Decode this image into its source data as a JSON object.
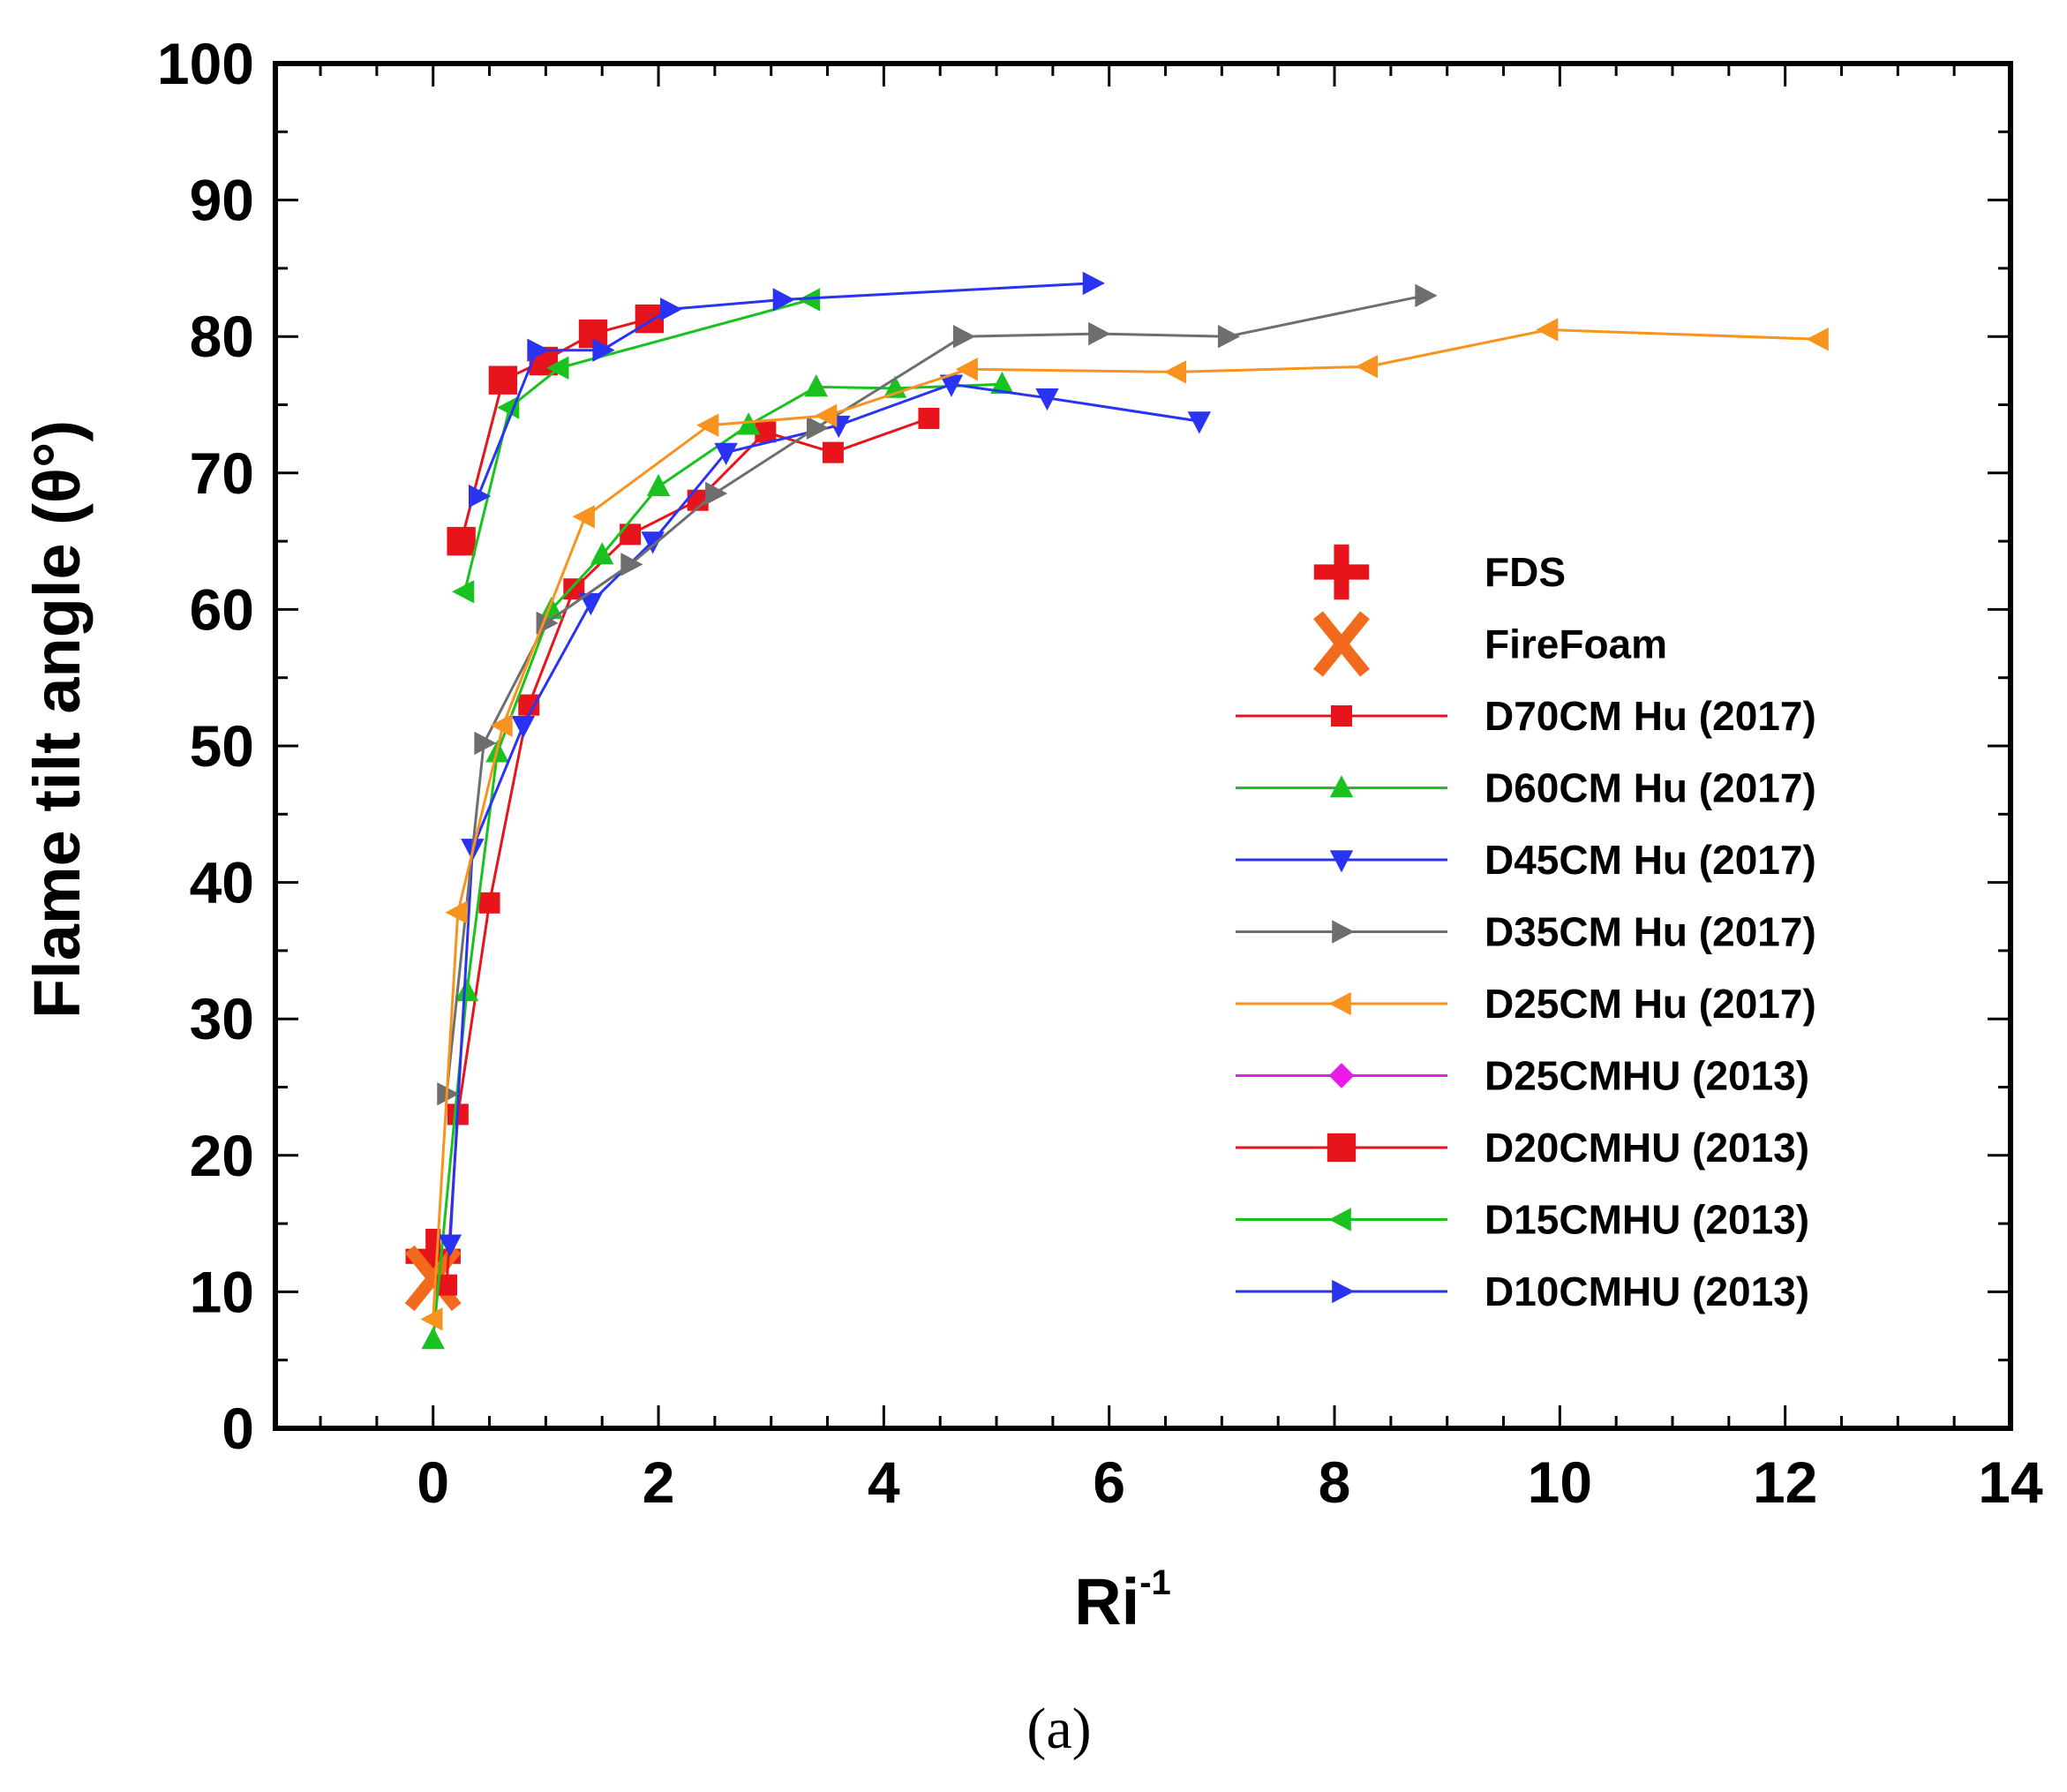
{
  "chart_data": {
    "type": "scatter",
    "title": "",
    "xlabel": "Ri",
    "xlabel_superscript": "-1",
    "ylabel": "Flame tilt angle (θ°)",
    "xlim": [
      -1.4,
      14
    ],
    "ylim": [
      0,
      100
    ],
    "xticks": [
      0,
      2,
      4,
      6,
      8,
      10,
      12,
      14
    ],
    "yticks": [
      0,
      10,
      20,
      30,
      40,
      50,
      60,
      70,
      80,
      90,
      100
    ],
    "grid": false,
    "legend_position": "right",
    "caption": "(a)",
    "series": [
      {
        "name": "FDS",
        "color": "#e8141c",
        "marker": "plus",
        "line": false,
        "points": [
          [
            0.0,
            12.6
          ]
        ]
      },
      {
        "name": "FireFoam",
        "color": "#f26b1d",
        "marker": "x",
        "line": false,
        "points": [
          [
            0.0,
            11.0
          ]
        ]
      },
      {
        "name": "D70CM Hu (2017)",
        "color": "#e8141c",
        "marker": "square",
        "line": true,
        "points": [
          [
            0.12,
            10.5
          ],
          [
            0.22,
            23
          ],
          [
            0.5,
            38.5
          ],
          [
            0.85,
            53
          ],
          [
            1.25,
            61.5
          ],
          [
            1.75,
            65.5
          ],
          [
            2.35,
            68
          ],
          [
            2.95,
            73
          ],
          [
            3.55,
            71.5
          ],
          [
            4.4,
            74
          ]
        ]
      },
      {
        "name": "D60CM Hu (2017)",
        "color": "#19c21e",
        "marker": "triangle-up",
        "line": true,
        "points": [
          [
            0.0,
            6.5
          ],
          [
            0.3,
            32
          ],
          [
            0.57,
            49.5
          ],
          [
            1.05,
            60
          ],
          [
            1.5,
            64
          ],
          [
            2.0,
            69
          ],
          [
            2.8,
            73.5
          ],
          [
            3.4,
            76.3
          ],
          [
            4.1,
            76.2
          ],
          [
            5.05,
            76.5
          ]
        ]
      },
      {
        "name": "D45CM Hu (2017)",
        "color": "#2a33f2",
        "marker": "triangle-down",
        "line": true,
        "points": [
          [
            0.15,
            13.5
          ],
          [
            0.35,
            42.5
          ],
          [
            0.8,
            51.5
          ],
          [
            1.4,
            60.5
          ],
          [
            1.95,
            65
          ],
          [
            2.6,
            71.5
          ],
          [
            3.6,
            73.5
          ],
          [
            4.6,
            76.5
          ],
          [
            5.45,
            75.5
          ],
          [
            6.8,
            73.8
          ]
        ]
      },
      {
        "name": "D35CM Hu (2017)",
        "color": "#6e6e6e",
        "marker": "triangle-right",
        "line": true,
        "points": [
          [
            0.12,
            24.5
          ],
          [
            0.45,
            50.2
          ],
          [
            1.0,
            59
          ],
          [
            1.75,
            63.3
          ],
          [
            2.5,
            68.5
          ],
          [
            3.4,
            73.3
          ],
          [
            4.7,
            80
          ],
          [
            5.9,
            80.2
          ],
          [
            7.05,
            80
          ],
          [
            8.8,
            83
          ]
        ]
      },
      {
        "name": "D25CM Hu (2017)",
        "color": "#f7931e",
        "marker": "triangle-left",
        "line": true,
        "points": [
          [
            0.0,
            8
          ],
          [
            0.22,
            37.8
          ],
          [
            0.62,
            51.5
          ],
          [
            1.35,
            66.8
          ],
          [
            2.45,
            73.5
          ],
          [
            3.5,
            74.2
          ],
          [
            4.75,
            77.6
          ],
          [
            6.6,
            77.4
          ],
          [
            8.3,
            77.8
          ],
          [
            9.9,
            80.5
          ],
          [
            12.3,
            79.8
          ]
        ]
      },
      {
        "name": "D25CMHU (2013)",
        "color": "#e81ce8",
        "marker": "diamond",
        "line": true,
        "points": []
      },
      {
        "name": "D20CMHU (2013)",
        "color": "#e8141c",
        "marker": "square-large",
        "line": true,
        "points": [
          [
            0.25,
            65
          ],
          [
            0.62,
            76.8
          ],
          [
            0.98,
            78.2
          ],
          [
            1.42,
            80.2
          ],
          [
            1.92,
            81.3
          ]
        ]
      },
      {
        "name": "D15CMHU (2013)",
        "color": "#19c21e",
        "marker": "triangle-left",
        "line": true,
        "points": [
          [
            0.28,
            61.3
          ],
          [
            0.68,
            74.8
          ],
          [
            1.12,
            77.7
          ],
          [
            3.35,
            82.7
          ]
        ]
      },
      {
        "name": "D10CMHU (2013)",
        "color": "#2a33f2",
        "marker": "triangle-right",
        "line": true,
        "points": [
          [
            0.4,
            68.3
          ],
          [
            0.92,
            79
          ],
          [
            1.5,
            79
          ],
          [
            2.1,
            82
          ],
          [
            3.1,
            82.7
          ],
          [
            5.85,
            83.9
          ]
        ]
      }
    ]
  }
}
